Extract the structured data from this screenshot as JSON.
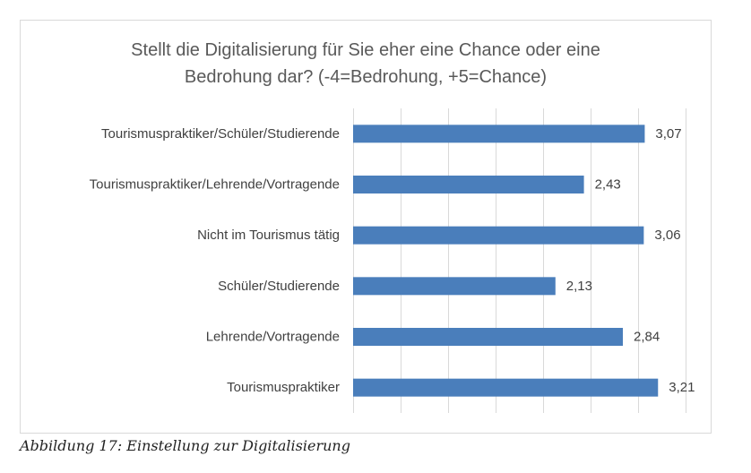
{
  "chart_data": {
    "type": "bar",
    "orientation": "horizontal",
    "title_lines": [
      "Stellt die Digitalisierung  für Sie eher eine Chance oder eine",
      "Bedrohung dar? (-4=Bedrohung,  +5=Chance)"
    ],
    "categories": [
      "Tourismuspraktiker/Schüler/Studierende",
      "Tourismuspraktiker/Lehrende/Vortragende",
      "Nicht im Tourismus tätig",
      "Schüler/Studierende",
      "Lehrende/Vortragende",
      "Tourismuspraktiker"
    ],
    "values": [
      3.07,
      2.43,
      3.06,
      2.13,
      2.84,
      3.21
    ],
    "value_labels": [
      "3,07",
      "2,43",
      "3,06",
      "2,13",
      "2,84",
      "3,21"
    ],
    "xlim": [
      0,
      3.5
    ],
    "grid": "vertical",
    "bar_color": "#4a7ebb"
  },
  "caption": "Abbildung 17: Einstellung zur Digitalisierung"
}
